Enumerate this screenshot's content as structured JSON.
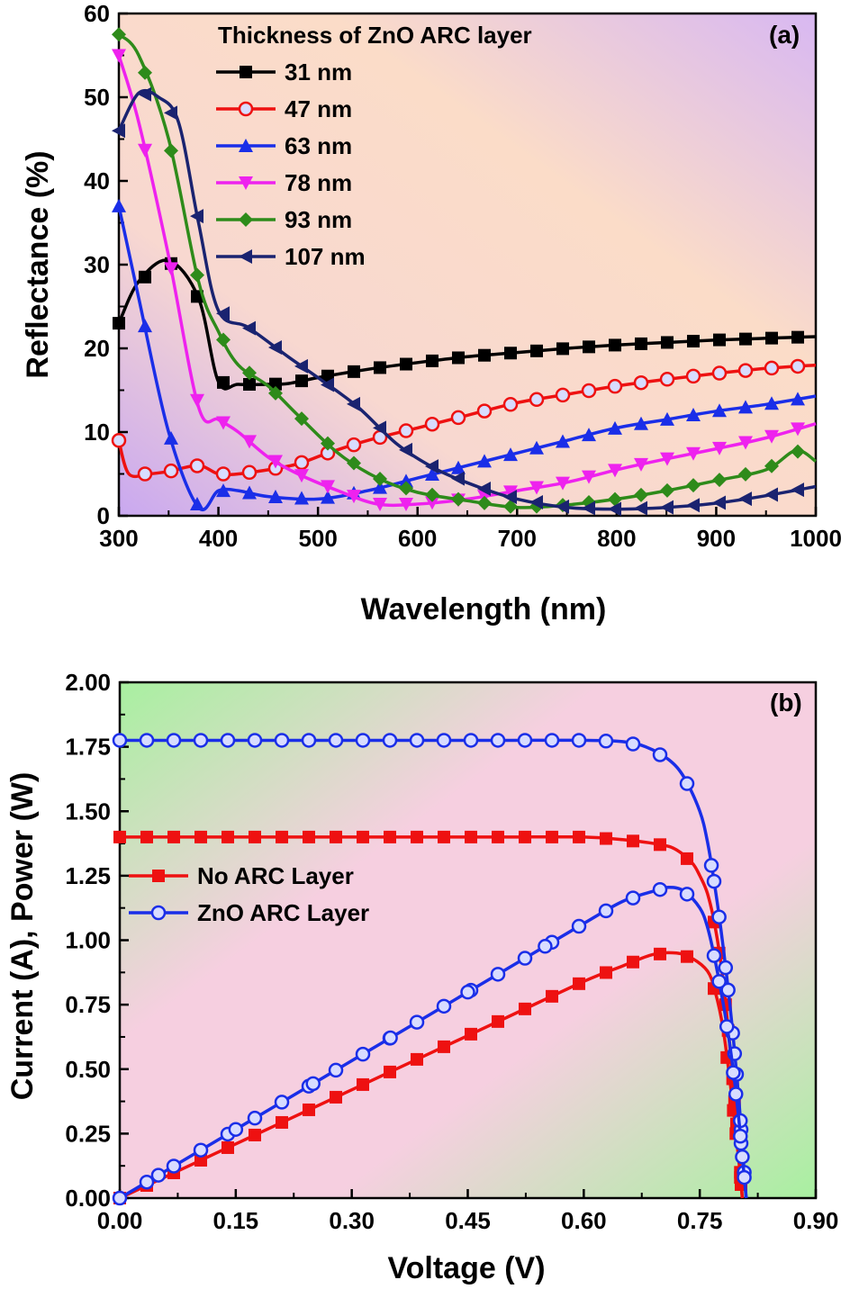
{
  "chart_data": [
    {
      "panel": "(a)",
      "type": "line",
      "xlabel": "Wavelength (nm)",
      "ylabel": "Reflectance (%)",
      "xlim": [
        300,
        1000
      ],
      "ylim": [
        0,
        60
      ],
      "xticks": [
        300,
        400,
        500,
        600,
        700,
        800,
        900,
        1000
      ],
      "yticks": [
        0,
        10,
        20,
        30,
        40,
        50,
        60
      ],
      "legend_title": "Thickness of ZnO ARC layer",
      "legend_position": "top-center",
      "series": [
        {
          "name": "31 nm",
          "color": "#000000",
          "marker": "square",
          "points": [
            [
              300,
              23
            ],
            [
              320,
              28
            ],
            [
              350,
              30.5
            ],
            [
              380,
              26
            ],
            [
              400,
              16
            ],
            [
              420,
              15.7
            ],
            [
              450,
              15.7
            ],
            [
              470,
              15.8
            ],
            [
              500,
              16.5
            ],
            [
              550,
              17.5
            ],
            [
              600,
              18.3
            ],
            [
              650,
              19
            ],
            [
              700,
              19.5
            ],
            [
              750,
              20
            ],
            [
              800,
              20.4
            ],
            [
              850,
              20.7
            ],
            [
              900,
              21
            ],
            [
              950,
              21.2
            ],
            [
              1000,
              21.4
            ]
          ]
        },
        {
          "name": "47 nm",
          "color": "#ee1111",
          "marker": "circle",
          "points": [
            [
              300,
              9
            ],
            [
              310,
              5
            ],
            [
              330,
              5
            ],
            [
              350,
              5.3
            ],
            [
              380,
              6
            ],
            [
              400,
              5
            ],
            [
              420,
              5
            ],
            [
              450,
              5.5
            ],
            [
              480,
              6.2
            ],
            [
              510,
              7.5
            ],
            [
              550,
              9
            ],
            [
              600,
              10.5
            ],
            [
              650,
              12
            ],
            [
              700,
              13.5
            ],
            [
              750,
              14.5
            ],
            [
              800,
              15.5
            ],
            [
              850,
              16.3
            ],
            [
              900,
              17
            ],
            [
              950,
              17.6
            ],
            [
              1000,
              18
            ]
          ]
        },
        {
          "name": "63 nm",
          "color": "#1a2ee8",
          "marker": "triangle-up",
          "points": [
            [
              300,
              37
            ],
            [
              320,
              26
            ],
            [
              350,
              10
            ],
            [
              380,
              1
            ],
            [
              400,
              3
            ],
            [
              420,
              3
            ],
            [
              450,
              2.3
            ],
            [
              500,
              2
            ],
            [
              550,
              3
            ],
            [
              600,
              4.5
            ],
            [
              650,
              6
            ],
            [
              700,
              7.5
            ],
            [
              750,
              9
            ],
            [
              800,
              10.5
            ],
            [
              850,
              11.5
            ],
            [
              900,
              12.5
            ],
            [
              950,
              13.3
            ],
            [
              1000,
              14.3
            ]
          ]
        },
        {
          "name": "78 nm",
          "color": "#ee22ee",
          "marker": "triangle-down",
          "points": [
            [
              300,
              55
            ],
            [
              320,
              47
            ],
            [
              350,
              31
            ],
            [
              380,
              13
            ],
            [
              400,
              11.5
            ],
            [
              420,
              10
            ],
            [
              450,
              7
            ],
            [
              480,
              5
            ],
            [
              520,
              3
            ],
            [
              560,
              1.4
            ],
            [
              600,
              1.4
            ],
            [
              650,
              2
            ],
            [
              700,
              3
            ],
            [
              750,
              4
            ],
            [
              800,
              5.5
            ],
            [
              850,
              6.8
            ],
            [
              900,
              8
            ],
            [
              950,
              9.3
            ],
            [
              1000,
              11
            ]
          ]
        },
        {
          "name": "93 nm",
          "color": "#2e8b1a",
          "marker": "diamond",
          "points": [
            [
              300,
              57.5
            ],
            [
              320,
              55
            ],
            [
              350,
              45
            ],
            [
              380,
              28
            ],
            [
              400,
              22
            ],
            [
              420,
              18
            ],
            [
              450,
              15.5
            ],
            [
              480,
              12
            ],
            [
              520,
              7.5
            ],
            [
              560,
              4.5
            ],
            [
              600,
              2.8
            ],
            [
              650,
              1.8
            ],
            [
              700,
              1
            ],
            [
              750,
              1.3
            ],
            [
              800,
              2
            ],
            [
              850,
              3
            ],
            [
              900,
              4.2
            ],
            [
              950,
              5.5
            ],
            [
              980,
              7.8
            ],
            [
              1000,
              6.5
            ]
          ]
        },
        {
          "name": "107 nm",
          "color": "#1a2370",
          "marker": "triangle-left",
          "points": [
            [
              300,
              46
            ],
            [
              320,
              50.5
            ],
            [
              340,
              50
            ],
            [
              360,
              47
            ],
            [
              380,
              35
            ],
            [
              400,
              24.5
            ],
            [
              430,
              22.5
            ],
            [
              470,
              19
            ],
            [
              500,
              16.5
            ],
            [
              540,
              13
            ],
            [
              580,
              8.5
            ],
            [
              620,
              5.5
            ],
            [
              660,
              3.5
            ],
            [
              700,
              2
            ],
            [
              750,
              1
            ],
            [
              800,
              0.8
            ],
            [
              850,
              1
            ],
            [
              900,
              1.5
            ],
            [
              950,
              2.4
            ],
            [
              1000,
              3.5
            ]
          ]
        }
      ]
    },
    {
      "panel": "(b)",
      "type": "line",
      "xlabel": "Voltage (V)",
      "ylabel": "Current (A), Power (W)",
      "xlim": [
        0,
        0.9
      ],
      "ylim": [
        0,
        2.0
      ],
      "xticks": [
        0.0,
        0.15,
        0.3,
        0.45,
        0.6,
        0.75,
        0.9
      ],
      "xtick_labels": [
        "0.00",
        "0.15",
        "0.30",
        "0.45",
        "0.60",
        "0.75",
        "0.90"
      ],
      "yticks": [
        0.0,
        0.25,
        0.5,
        0.75,
        1.0,
        1.25,
        1.5,
        1.75,
        2.0
      ],
      "ytick_labels": [
        "0.00",
        "0.25",
        "0.50",
        "0.75",
        "1.00",
        "1.25",
        "1.50",
        "1.75",
        "2.00"
      ],
      "legend_position": "middle-left",
      "series": [
        {
          "name": "No ARC Layer",
          "color": "#ee1111",
          "marker": "square",
          "kind": "current",
          "points": [
            [
              0,
              1.4
            ],
            [
              0.1,
              1.4
            ],
            [
              0.2,
              1.4
            ],
            [
              0.3,
              1.4
            ],
            [
              0.4,
              1.4
            ],
            [
              0.5,
              1.4
            ],
            [
              0.6,
              1.4
            ],
            [
              0.65,
              1.39
            ],
            [
              0.7,
              1.37
            ],
            [
              0.72,
              1.35
            ],
            [
              0.74,
              1.3
            ],
            [
              0.75,
              1.25
            ],
            [
              0.76,
              1.18
            ],
            [
              0.77,
              1.05
            ],
            [
              0.78,
              0.85
            ],
            [
              0.79,
              0.55
            ],
            [
              0.8,
              0.2
            ],
            [
              0.805,
              0
            ]
          ]
        },
        {
          "name": "No ARC Layer",
          "color": "#ee1111",
          "marker": "square",
          "kind": "power",
          "points": [
            [
              0,
              0
            ],
            [
              0.1,
              0.14
            ],
            [
              0.2,
              0.28
            ],
            [
              0.3,
              0.42
            ],
            [
              0.4,
              0.56
            ],
            [
              0.5,
              0.7
            ],
            [
              0.6,
              0.84
            ],
            [
              0.65,
              0.9
            ],
            [
              0.69,
              0.945
            ],
            [
              0.72,
              0.95
            ],
            [
              0.74,
              0.93
            ],
            [
              0.76,
              0.88
            ],
            [
              0.77,
              0.8
            ],
            [
              0.78,
              0.66
            ],
            [
              0.79,
              0.43
            ],
            [
              0.8,
              0.16
            ],
            [
              0.805,
              0
            ]
          ]
        },
        {
          "name": "ZnO ARC Layer",
          "color": "#1a2ee8",
          "marker": "circle",
          "kind": "current",
          "points": [
            [
              0,
              1.775
            ],
            [
              0.1,
              1.775
            ],
            [
              0.2,
              1.775
            ],
            [
              0.3,
              1.775
            ],
            [
              0.4,
              1.775
            ],
            [
              0.5,
              1.775
            ],
            [
              0.6,
              1.775
            ],
            [
              0.65,
              1.77
            ],
            [
              0.68,
              1.75
            ],
            [
              0.71,
              1.7
            ],
            [
              0.73,
              1.63
            ],
            [
              0.75,
              1.5
            ],
            [
              0.76,
              1.38
            ],
            [
              0.77,
              1.2
            ],
            [
              0.78,
              0.98
            ],
            [
              0.79,
              0.72
            ],
            [
              0.8,
              0.4
            ],
            [
              0.805,
              0.2
            ],
            [
              0.81,
              0
            ]
          ]
        },
        {
          "name": "ZnO ARC Layer",
          "color": "#1a2ee8",
          "marker": "circle",
          "kind": "power",
          "points": [
            [
              0,
              0
            ],
            [
              0.1,
              0.1775
            ],
            [
              0.2,
              0.355
            ],
            [
              0.3,
              0.5325
            ],
            [
              0.4,
              0.71
            ],
            [
              0.5,
              0.8875
            ],
            [
              0.6,
              1.065
            ],
            [
              0.65,
              1.15
            ],
            [
              0.69,
              1.19
            ],
            [
              0.71,
              1.205
            ],
            [
              0.73,
              1.19
            ],
            [
              0.75,
              1.125
            ],
            [
              0.76,
              1.05
            ],
            [
              0.77,
              0.92
            ],
            [
              0.78,
              0.76
            ],
            [
              0.79,
              0.57
            ],
            [
              0.8,
              0.32
            ],
            [
              0.81,
              0
            ]
          ]
        }
      ]
    }
  ]
}
